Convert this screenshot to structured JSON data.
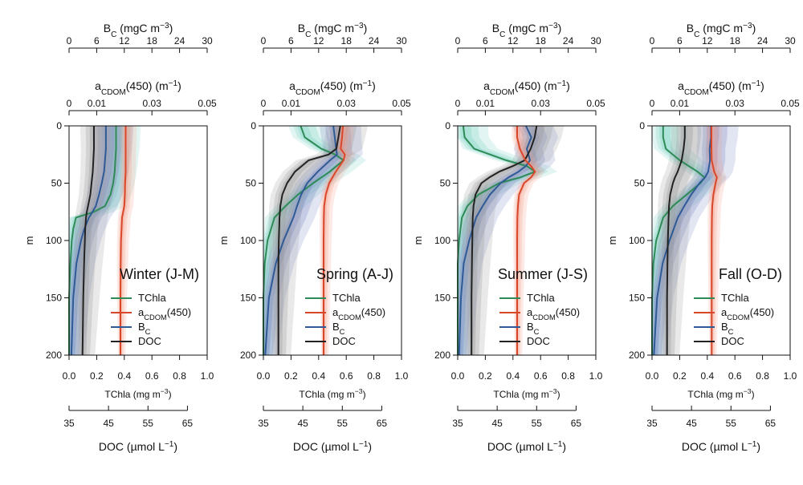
{
  "chart_data": {
    "type": "line",
    "axes": {
      "depth": {
        "label": "m",
        "range": [
          0,
          200
        ],
        "ticks": [
          "0",
          "50",
          "100",
          "150",
          "200"
        ],
        "reversed": true
      },
      "tchla": {
        "label": "TChla (mg m",
        "sup": "−3",
        "close": ")",
        "range": [
          0,
          1
        ],
        "ticks": [
          "0.0",
          "0.2",
          "0.4",
          "0.6",
          "0.8",
          "1.0"
        ]
      },
      "bc": {
        "label_main": "B",
        "label_sub": "C",
        "label_rest": " (mgC m",
        "sup": "−3",
        "close": ")",
        "range": [
          0,
          30
        ],
        "ticks": [
          "0",
          "6",
          "12",
          "18",
          "24",
          "30"
        ]
      },
      "cdom": {
        "label_main": "a",
        "label_sub": "CDOM",
        "label_rest": "(450) (m",
        "sup": "−1",
        "close": ")",
        "range": [
          0,
          0.05
        ],
        "ticks": [
          "0",
          "0.01",
          "0.03",
          "0.05"
        ],
        "tick_values": [
          0,
          0.01,
          0.03,
          0.05
        ]
      },
      "doc": {
        "label": "DOC (µmol L",
        "sup": "−1",
        "close": ")",
        "range": [
          35,
          70
        ],
        "ticks": [
          "35",
          "45",
          "55",
          "65"
        ],
        "tick_values": [
          35,
          45,
          55,
          65
        ]
      }
    },
    "legend": [
      {
        "key": "tchla",
        "label_main": "TChla",
        "label_sub": "",
        "label_rest": "",
        "color": "#2e8b57"
      },
      {
        "key": "cdom",
        "label_main": "a",
        "label_sub": "CDOM",
        "label_rest": "(450)",
        "color": "#d9472b"
      },
      {
        "key": "bc",
        "label_main": "B",
        "label_sub": "C",
        "label_rest": "",
        "color": "#2f5a96"
      },
      {
        "key": "doc",
        "label_main": "DOC",
        "label_sub": "",
        "label_rest": "",
        "color": "#222222"
      }
    ],
    "colors": {
      "tchla": "#2e8b57",
      "cdom": "#d9472b",
      "bc": "#2f5a96",
      "doc": "#222222",
      "tchla_band": "#7fd3c4",
      "cdom_band": "#f4a08c",
      "bc_band": "#7c88c4",
      "doc_band": "#9a9a9a"
    },
    "panels": [
      {
        "title": "Winter (J-M)",
        "depth": [
          0,
          20,
          40,
          50,
          60,
          70,
          75,
          80,
          90,
          100,
          120,
          150,
          200
        ],
        "series": {
          "tchla": [
            0.34,
            0.34,
            0.33,
            0.32,
            0.3,
            0.26,
            0.18,
            0.05,
            0.03,
            0.02,
            0.01,
            0.0,
            0.0
          ],
          "cdom": [
            0.0205,
            0.0205,
            0.0205,
            0.0203,
            0.0202,
            0.02,
            0.0196,
            0.0192,
            0.019,
            0.0188,
            0.0187,
            0.0186,
            0.0186
          ],
          "bc": [
            8.0,
            8.0,
            7.6,
            7.1,
            6.5,
            5.8,
            5.1,
            4.3,
            3.3,
            2.6,
            1.6,
            0.9,
            0.5
          ],
          "doc": [
            41.3,
            41.3,
            41.0,
            40.7,
            40.4,
            39.8,
            39.5,
            39.3,
            39.1,
            39.0,
            38.8,
            38.6,
            38.4
          ]
        }
      },
      {
        "title": "Spring (A-J)",
        "depth": [
          0,
          10,
          20,
          25,
          30,
          40,
          50,
          60,
          70,
          80,
          100,
          120,
          150,
          200
        ],
        "series": {
          "tchla": [
            0.27,
            0.3,
            0.42,
            0.52,
            0.58,
            0.48,
            0.36,
            0.25,
            0.16,
            0.08,
            0.03,
            0.01,
            0.0,
            0.0
          ],
          "cdom": [
            0.0288,
            0.0285,
            0.028,
            0.0295,
            0.029,
            0.0262,
            0.0238,
            0.0226,
            0.022,
            0.0219,
            0.0218,
            0.0218,
            0.0218,
            0.0218
          ],
          "bc": [
            15.2,
            15.5,
            15.8,
            16.0,
            14.5,
            11.8,
            9.5,
            8.2,
            7.3,
            6.5,
            4.4,
            2.7,
            1.2,
            0.4
          ],
          "doc": [
            54.5,
            54.0,
            53.5,
            51.5,
            46.5,
            43.0,
            41.0,
            39.8,
            39.3,
            39.1,
            38.9,
            38.8,
            38.8,
            38.8
          ]
        }
      },
      {
        "title": "Summer (J-S)",
        "depth": [
          0,
          10,
          20,
          30,
          35,
          40,
          45,
          50,
          60,
          70,
          80,
          100,
          120,
          150,
          200
        ],
        "series": {
          "tchla": [
            0.04,
            0.05,
            0.12,
            0.35,
            0.5,
            0.56,
            0.45,
            0.3,
            0.15,
            0.07,
            0.03,
            0.01,
            0.0,
            0.0,
            0.0
          ],
          "cdom": [
            0.0215,
            0.0215,
            0.0225,
            0.0245,
            0.0265,
            0.028,
            0.0265,
            0.024,
            0.0222,
            0.0218,
            0.0216,
            0.0215,
            0.0215,
            0.0215,
            0.0215
          ],
          "bc": [
            14.8,
            16.0,
            15.0,
            15.7,
            14.8,
            13.2,
            11.0,
            9.3,
            7.0,
            5.4,
            4.0,
            2.5,
            1.3,
            0.7,
            0.3
          ],
          "doc": [
            55.0,
            54.5,
            53.5,
            52.0,
            49.0,
            45.5,
            43.0,
            41.0,
            39.5,
            39.0,
            38.8,
            38.7,
            38.6,
            38.5,
            38.5
          ]
        }
      },
      {
        "title": "Fall (O-D)",
        "depth": [
          0,
          10,
          20,
          30,
          40,
          45,
          50,
          60,
          70,
          80,
          100,
          120,
          150,
          200
        ],
        "series": {
          "tchla": [
            0.08,
            0.08,
            0.1,
            0.2,
            0.33,
            0.38,
            0.35,
            0.25,
            0.15,
            0.08,
            0.03,
            0.01,
            0.0,
            0.0
          ],
          "cdom": [
            0.0215,
            0.0215,
            0.0215,
            0.0216,
            0.0225,
            0.0235,
            0.023,
            0.0222,
            0.0218,
            0.0217,
            0.0216,
            0.0216,
            0.0216,
            0.0216
          ],
          "bc": [
            12.8,
            12.8,
            12.5,
            12.6,
            12.2,
            11.5,
            10.3,
            8.5,
            7.0,
            5.6,
            3.8,
            2.3,
            1.1,
            0.4
          ],
          "doc": [
            43.3,
            43.3,
            43.0,
            42.5,
            41.5,
            40.8,
            40.3,
            39.6,
            39.3,
            39.2,
            39.0,
            38.9,
            38.8,
            38.8
          ]
        }
      }
    ]
  }
}
